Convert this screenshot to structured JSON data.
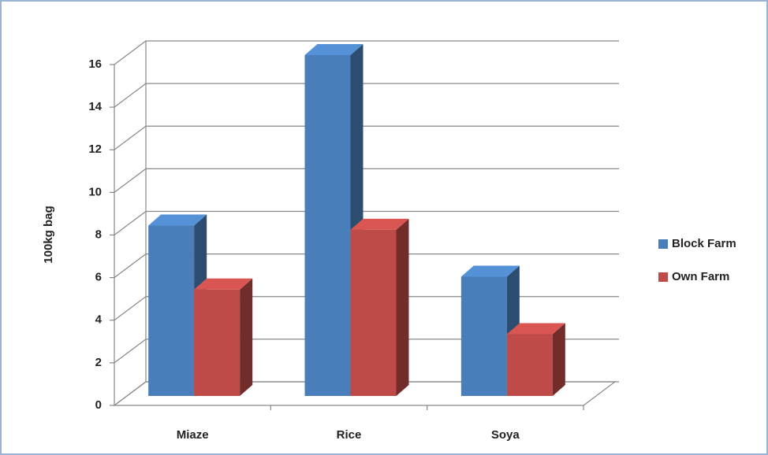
{
  "chart_data": {
    "type": "bar3d",
    "y_label": "100kg bag",
    "categories": [
      "Miaze",
      "Rice",
      "Soya"
    ],
    "series": [
      {
        "name": "Block Farm",
        "color": "#4a7ebb",
        "values": [
          8,
          16,
          5.6
        ]
      },
      {
        "name": "Own Farm",
        "color": "#be4b48",
        "values": [
          5,
          7.8,
          2.9
        ]
      }
    ],
    "ylim": [
      0,
      16
    ],
    "yticks": [
      0,
      2,
      4,
      6,
      8,
      10,
      12,
      14,
      16
    ],
    "grid": true,
    "legend": "right"
  }
}
